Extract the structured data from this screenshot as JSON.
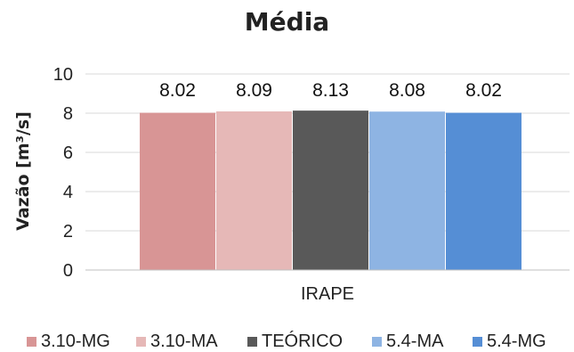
{
  "chart_data": {
    "type": "bar",
    "title": "Média",
    "xlabel": "",
    "ylabel": "Vazão [m³/s]",
    "categories": [
      "IRAPE"
    ],
    "ylim": [
      0,
      10
    ],
    "yticks": [
      "0",
      "2",
      "4",
      "6",
      "8",
      "10"
    ],
    "grid": true,
    "legend_position": "bottom",
    "series": [
      {
        "name": "3.10-MG",
        "values": [
          8.02
        ],
        "label": "8.02",
        "color": "#d89595"
      },
      {
        "name": "3.10-MA",
        "values": [
          8.09
        ],
        "label": "8.09",
        "color": "#e6b8b7"
      },
      {
        "name": "TEÓRICO",
        "values": [
          8.13
        ],
        "label": "8.13",
        "color": "#595959"
      },
      {
        "name": "5.4-MA",
        "values": [
          8.08
        ],
        "label": "8.08",
        "color": "#8eb4e3"
      },
      {
        "name": "5.4-MG",
        "values": [
          8.02
        ],
        "label": "8.02",
        "color": "#558ed5"
      }
    ]
  }
}
